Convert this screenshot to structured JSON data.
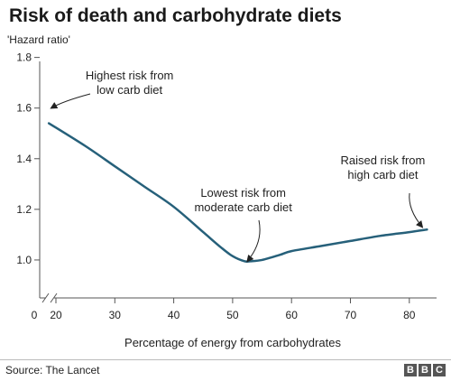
{
  "title": "Risk of death and carbohydrate diets",
  "source": "Source: The Lancet",
  "logo": {
    "letters": [
      "B",
      "B",
      "C"
    ]
  },
  "colors": {
    "line": "#26607a",
    "axis": "#555555",
    "text": "#222222"
  },
  "chart_data": {
    "type": "line",
    "title": "Risk of death and carbohydrate diets",
    "xlabel": "Percentage of energy from carbohydrates",
    "ylabel": "'Hazard ratio'",
    "xlim": [
      17,
      84
    ],
    "ylim": [
      0.85,
      1.82
    ],
    "x_axis_break": true,
    "grid": false,
    "x_ticks": [
      {
        "value": 0,
        "label": "0"
      },
      {
        "value": 20,
        "label": "20"
      },
      {
        "value": 30,
        "label": "30"
      },
      {
        "value": 40,
        "label": "40"
      },
      {
        "value": 50,
        "label": "50"
      },
      {
        "value": 60,
        "label": "60"
      },
      {
        "value": 70,
        "label": "70"
      },
      {
        "value": 80,
        "label": "80"
      }
    ],
    "y_ticks": [
      {
        "value": 1.0,
        "label": "1.0"
      },
      {
        "value": 1.2,
        "label": "1.2"
      },
      {
        "value": 1.4,
        "label": "1.4"
      },
      {
        "value": 1.6,
        "label": "1.6"
      },
      {
        "value": 1.8,
        "label": "1.8"
      }
    ],
    "x": [
      18.8,
      25,
      30,
      35,
      40,
      45,
      48,
      50,
      52,
      53,
      55,
      58,
      60,
      65,
      70,
      75,
      80,
      83
    ],
    "y": [
      1.54,
      1.45,
      1.37,
      1.29,
      1.21,
      1.11,
      1.05,
      1.015,
      0.995,
      0.995,
      1.0,
      1.02,
      1.035,
      1.055,
      1.075,
      1.095,
      1.11,
      1.12
    ],
    "annotations": [
      {
        "lines": [
          "Highest risk from",
          "low carb diet"
        ],
        "x": 32.5,
        "y": 1.73,
        "target_x": 19.2,
        "target_y": 1.6
      },
      {
        "lines": [
          "Lowest risk from",
          "moderate carb diet"
        ],
        "x": 51.8,
        "y": 1.25,
        "target_x": 52.5,
        "target_y": 0.995
      },
      {
        "lines": [
          "Raised risk from",
          "high carb diet"
        ],
        "x": 75.5,
        "y": 1.37,
        "target_x": 82.2,
        "target_y": 1.13
      }
    ]
  }
}
